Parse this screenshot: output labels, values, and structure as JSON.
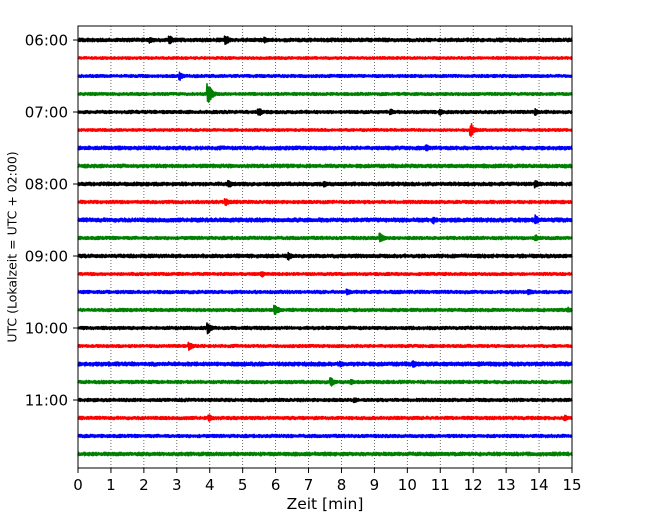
{
  "chart_data": {
    "type": "line",
    "title": "",
    "xlabel": "Zeit  [min]",
    "ylabel": "UTC (Lokalzeit = UTC + 02:00)",
    "xlim": [
      0,
      15
    ],
    "x_ticks": [
      0,
      1,
      2,
      3,
      4,
      5,
      6,
      7,
      8,
      9,
      10,
      11,
      12,
      13,
      14,
      15
    ],
    "y_tick_labels": [
      "06:00",
      "07:00",
      "08:00",
      "09:00",
      "10:00",
      "11:00"
    ],
    "grid": "vertical-dotted",
    "trace_minutes": 15,
    "trace_colors": [
      "#000000",
      "#ff0000",
      "#0000ff",
      "#008000"
    ],
    "traces": [
      {
        "start": "06:00",
        "amplitude": 0.25,
        "events": [
          {
            "t": 2.2,
            "a": 0.45
          },
          {
            "t": 2.8,
            "a": 0.6
          },
          {
            "t": 4.5,
            "a": 0.7
          },
          {
            "t": 5.7,
            "a": 0.4
          }
        ]
      },
      {
        "start": "06:15",
        "amplitude": 0.18,
        "events": []
      },
      {
        "start": "06:30",
        "amplitude": 0.2,
        "events": [
          {
            "t": 3.1,
            "a": 0.6
          }
        ]
      },
      {
        "start": "06:45",
        "amplitude": 0.2,
        "events": [
          {
            "t": 3.95,
            "a": 1.6
          }
        ]
      },
      {
        "start": "07:00",
        "amplitude": 0.22,
        "events": [
          {
            "t": 5.5,
            "a": 0.6
          },
          {
            "t": 9.5,
            "a": 0.45
          },
          {
            "t": 11.0,
            "a": 0.45
          },
          {
            "t": 13.9,
            "a": 0.45
          }
        ]
      },
      {
        "start": "07:15",
        "amplitude": 0.18,
        "events": [
          {
            "t": 11.95,
            "a": 0.9
          }
        ]
      },
      {
        "start": "07:30",
        "amplitude": 0.25,
        "events": [
          {
            "t": 10.6,
            "a": 0.45
          }
        ]
      },
      {
        "start": "07:45",
        "amplitude": 0.25,
        "events": []
      },
      {
        "start": "08:00",
        "amplitude": 0.25,
        "events": [
          {
            "t": 4.6,
            "a": 0.5
          },
          {
            "t": 7.5,
            "a": 0.45
          },
          {
            "t": 13.9,
            "a": 0.6
          }
        ]
      },
      {
        "start": "08:15",
        "amplitude": 0.22,
        "events": [
          {
            "t": 4.5,
            "a": 0.55
          }
        ]
      },
      {
        "start": "08:30",
        "amplitude": 0.28,
        "events": [
          {
            "t": 10.8,
            "a": 0.55
          },
          {
            "t": 13.9,
            "a": 0.7
          }
        ]
      },
      {
        "start": "08:45",
        "amplitude": 0.22,
        "events": [
          {
            "t": 9.2,
            "a": 0.7
          },
          {
            "t": 13.9,
            "a": 0.5
          }
        ]
      },
      {
        "start": "09:00",
        "amplitude": 0.25,
        "events": [
          {
            "t": 6.4,
            "a": 0.6
          }
        ]
      },
      {
        "start": "09:15",
        "amplitude": 0.2,
        "events": [
          {
            "t": 5.6,
            "a": 0.4
          }
        ]
      },
      {
        "start": "09:30",
        "amplitude": 0.22,
        "events": [
          {
            "t": 8.2,
            "a": 0.4
          },
          {
            "t": 13.7,
            "a": 0.45
          }
        ]
      },
      {
        "start": "09:45",
        "amplitude": 0.22,
        "events": [
          {
            "t": 6.0,
            "a": 0.75
          },
          {
            "t": 14.9,
            "a": 0.4
          }
        ]
      },
      {
        "start": "10:00",
        "amplitude": 0.22,
        "events": [
          {
            "t": 3.95,
            "a": 0.8
          }
        ]
      },
      {
        "start": "10:15",
        "amplitude": 0.2,
        "events": [
          {
            "t": 3.4,
            "a": 0.6
          }
        ]
      },
      {
        "start": "10:30",
        "amplitude": 0.28,
        "events": [
          {
            "t": 8.0,
            "a": 0.4
          },
          {
            "t": 10.2,
            "a": 0.5
          }
        ]
      },
      {
        "start": "10:45",
        "amplitude": 0.22,
        "events": [
          {
            "t": 7.7,
            "a": 0.6
          },
          {
            "t": 8.3,
            "a": 0.4
          }
        ]
      },
      {
        "start": "11:00",
        "amplitude": 0.22,
        "events": [
          {
            "t": 8.4,
            "a": 0.4
          }
        ]
      },
      {
        "start": "11:15",
        "amplitude": 0.22,
        "events": [
          {
            "t": 4.0,
            "a": 0.45
          },
          {
            "t": 14.8,
            "a": 0.45
          }
        ]
      },
      {
        "start": "11:30",
        "amplitude": 0.22,
        "events": []
      },
      {
        "start": "11:45",
        "amplitude": 0.25,
        "events": []
      }
    ]
  }
}
